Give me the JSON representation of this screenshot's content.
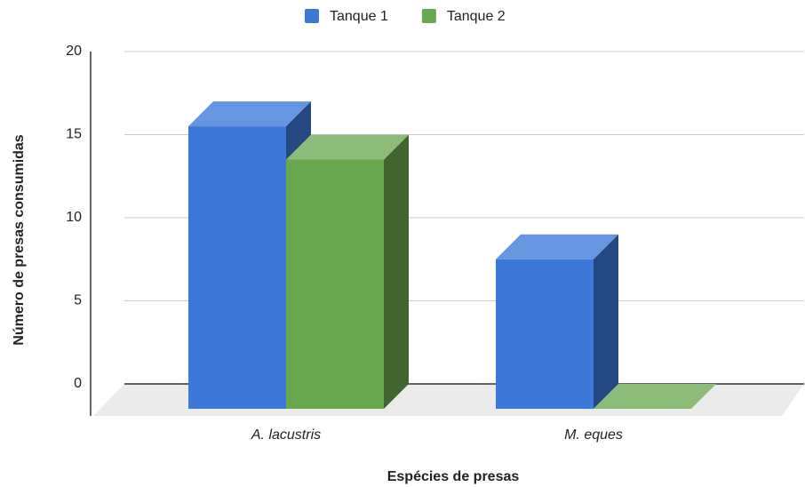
{
  "chart_data": {
    "type": "bar3d",
    "x_label": "Espécies de presas",
    "y_label": "Número de presas consumidas",
    "categories": [
      "A. lacustris",
      "M. eques"
    ],
    "series": [
      {
        "name": "Tanque 1",
        "color": "#3c78d8",
        "values": [
          17,
          9
        ]
      },
      {
        "name": "Tanque 2",
        "color": "#6aa84f",
        "values": [
          15,
          0
        ]
      }
    ],
    "ylim": [
      0,
      20
    ],
    "yticks": [
      0,
      5,
      10,
      15,
      20
    ],
    "grid": true,
    "legend": "top"
  }
}
